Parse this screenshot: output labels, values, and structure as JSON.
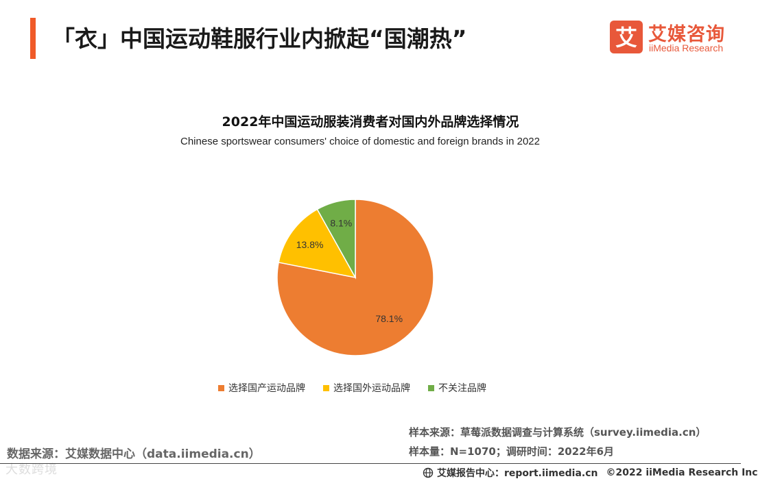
{
  "header": {
    "title": "「衣」中国运动鞋服行业内掀起“国潮热”",
    "accent_color": "#F05A28"
  },
  "logo": {
    "mark_char": "艾",
    "cn": "艾媒咨询",
    "en": "iiMedia Research",
    "color": "#E8583A"
  },
  "chart_data": {
    "type": "pie",
    "title": "2022年中国运动服装消费者对国内外品牌选择情况",
    "subtitle": "Chinese sportswear consumers' choice of domestic and foreign brands in 2022",
    "slices": [
      {
        "name": "选择国产运动品牌",
        "value": 78.1,
        "label": "78.1%",
        "color": "#ED7D31"
      },
      {
        "name": "选择国外运动品牌",
        "value": 13.8,
        "label": "13.8%",
        "color": "#FFC000"
      },
      {
        "name": "不关注品牌",
        "value": 8.1,
        "label": "8.1%",
        "color": "#70AD47"
      }
    ],
    "legend_position": "bottom",
    "start_angle": "top",
    "direction": "clockwise"
  },
  "notes": {
    "sample_source": "样本来源：草莓派数据调查与计算系统（survey.iimedia.cn）",
    "sample_size": "样本量：N=1070；调研时间：2022年6月",
    "data_source": "数据来源：艾媒数据中心（data.iimedia.cn）"
  },
  "footer": {
    "report": "艾媒报告中心：report.iimedia.cn",
    "copyright": "©2022 iiMedia Research Inc",
    "icon": "globe-icon"
  },
  "watermark": "大数跨境"
}
